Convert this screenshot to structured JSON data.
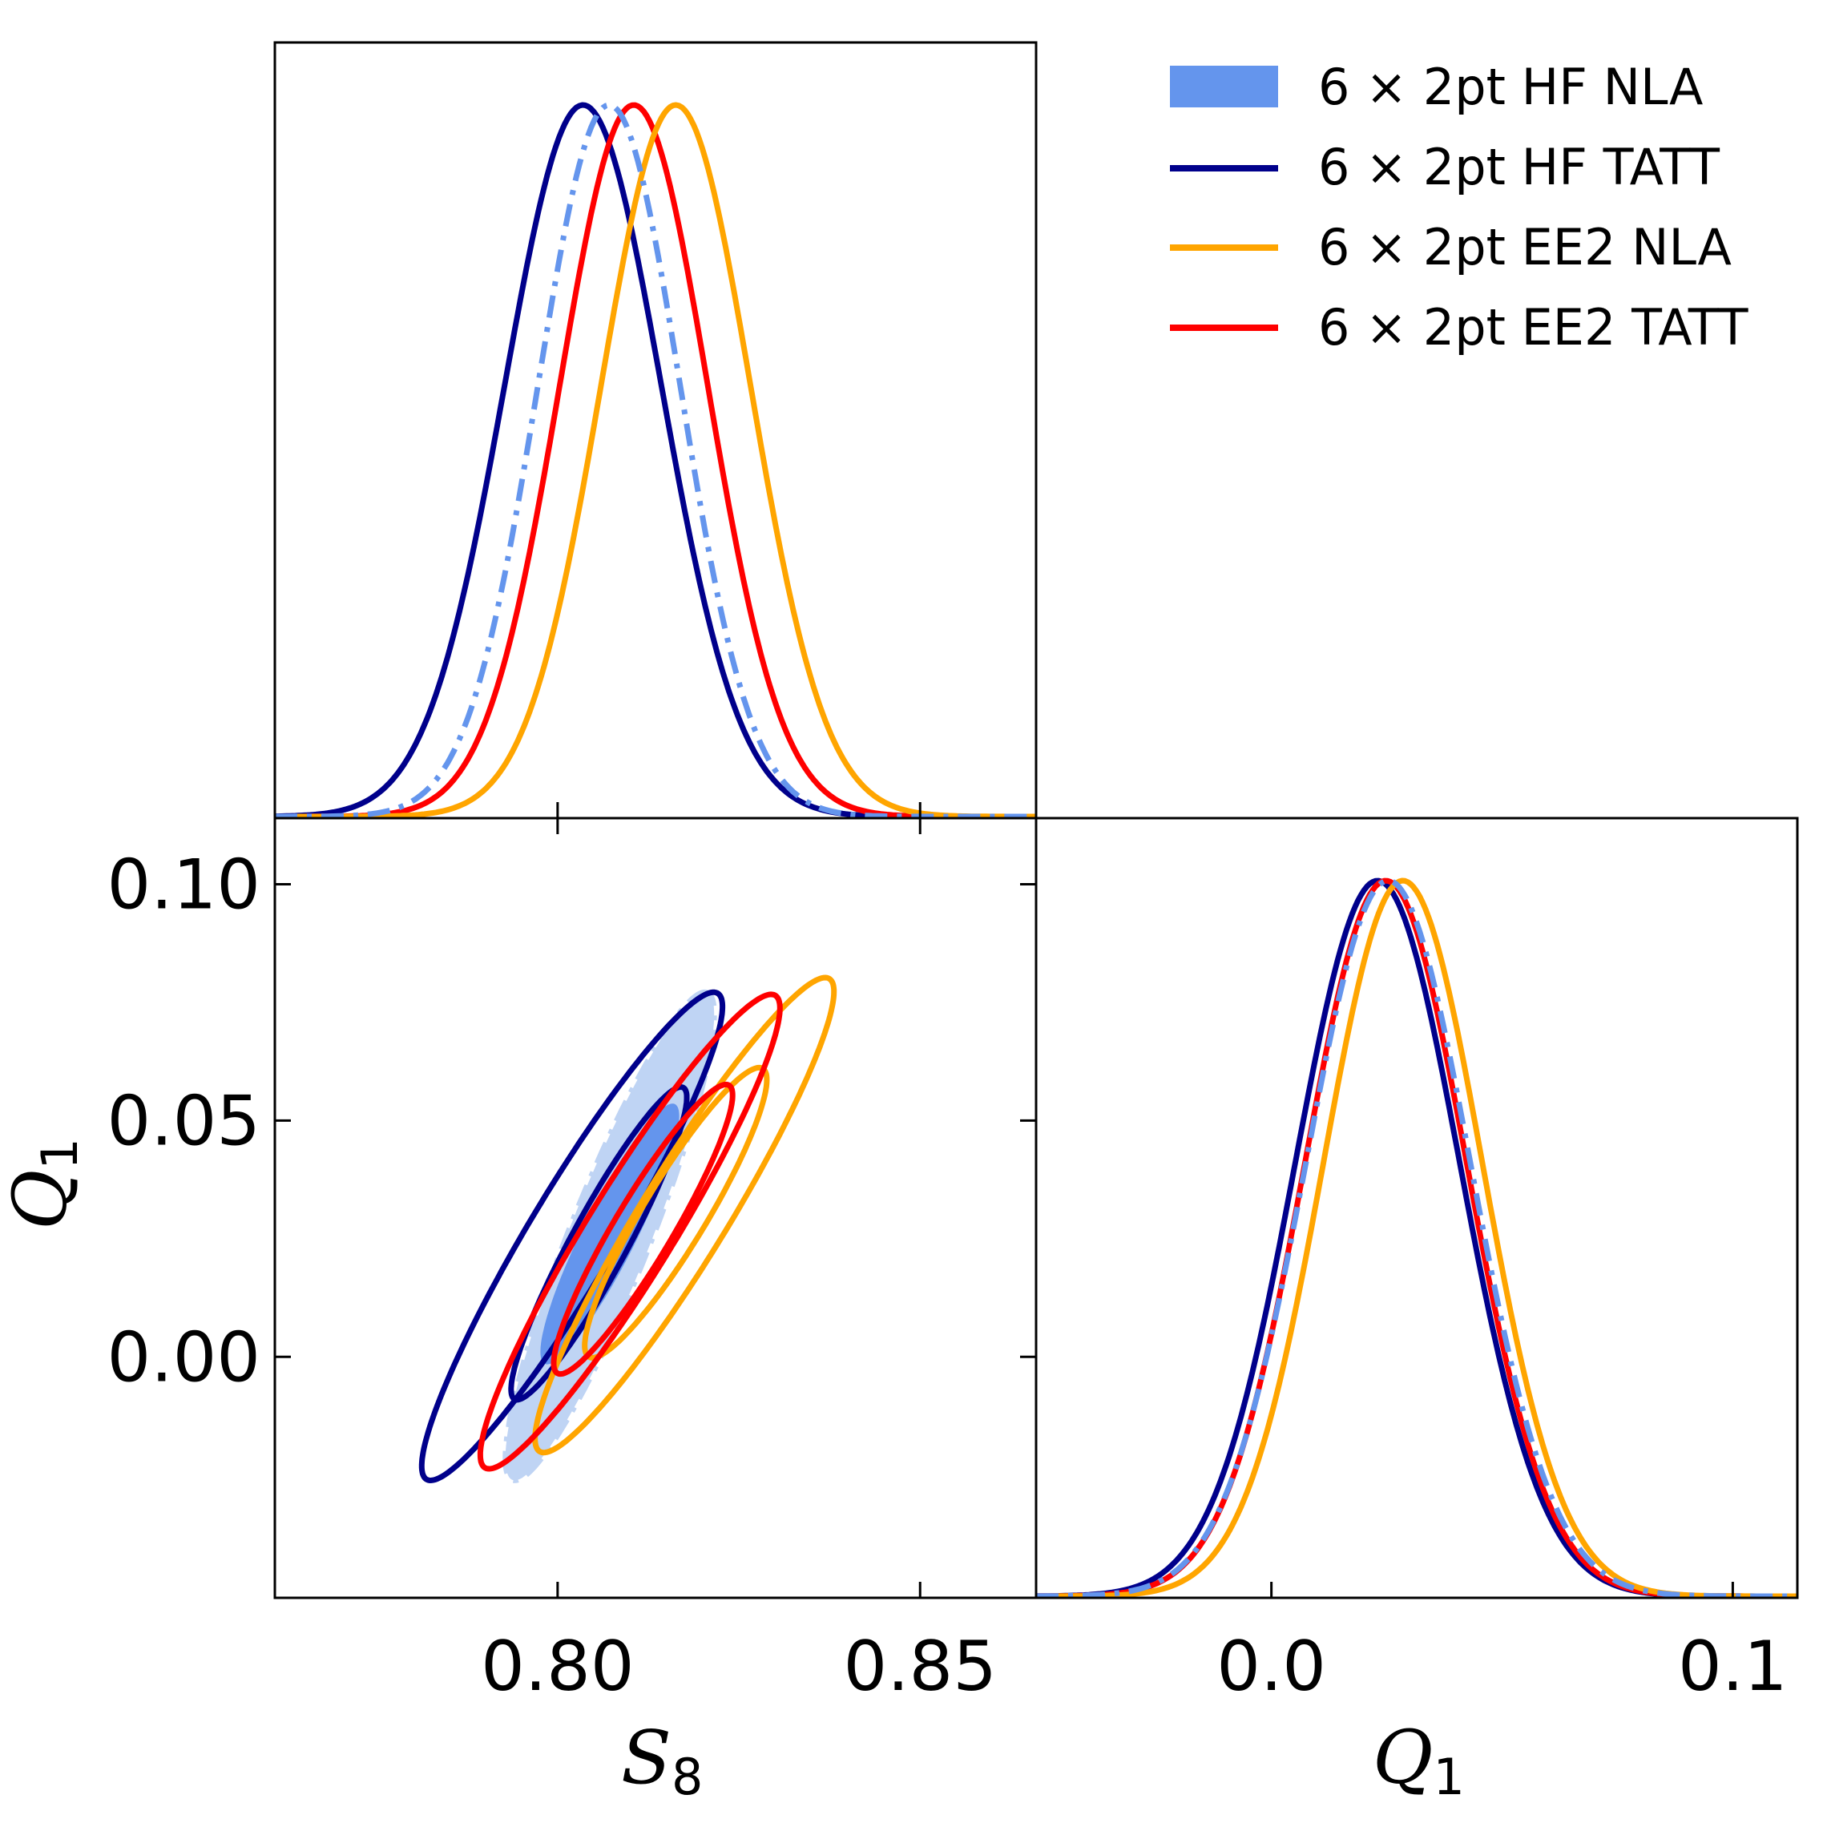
{
  "chart_data": {
    "type": "triangle",
    "colors": {
      "hf_nla": "#6495ED",
      "hf_nla_light": "#BFD4F4",
      "hf_tatt": "#00008B",
      "ee2_nla": "#FFA500",
      "ee2_tatt": "#FF0000"
    },
    "legend": [
      "6 × 2pt HF NLA",
      "6 × 2pt HF TATT",
      "6 × 2pt EE2 NLA",
      "6 × 2pt EE2 TATT"
    ],
    "legend_placement": "top-right",
    "parameters": {
      "S8": {
        "label": "S",
        "label_sub": "8",
        "range": [
          0.761,
          0.866
        ],
        "ticks": [
          0.8,
          0.85
        ],
        "tick_labels": [
          "0.80",
          "0.85"
        ]
      },
      "Q1": {
        "label": "Q",
        "label_sub": "1",
        "range": [
          -0.051,
          0.114
        ],
        "ticks_x": [
          0.0,
          0.1
        ],
        "tick_labels_x": [
          "0.0",
          "0.1"
        ],
        "ticks_y": [
          0.0,
          0.05,
          0.1
        ],
        "tick_labels_y": [
          "0.00",
          "0.05",
          "0.10"
        ]
      }
    },
    "series": [
      {
        "name": "6 × 2pt HF NLA",
        "style": "filled+dashdot",
        "S8": {
          "mean": 0.8071,
          "sigma": 0.0098
        },
        "Q1": {
          "mean": 0.0253,
          "sigma": 0.0178
        },
        "contour_68": {
          "center": [
            0.8072,
            0.026
          ],
          "ux": 0.00895,
          "uy": 0.0275,
          "vx": -0.0034,
          "vy": 0.0022
        },
        "contour_95": {
          "center": [
            0.8072,
            0.0255
          ],
          "ux": 0.0135,
          "uy": 0.0515,
          "vx": -0.005,
          "vy": 0.0038
        }
      },
      {
        "name": "6 × 2pt HF TATT",
        "style": "solid",
        "S8": {
          "mean": 0.8035,
          "sigma": 0.0108
        },
        "Q1": {
          "mean": 0.023,
          "sigma": 0.0178
        },
        "contour_68": {
          "center": [
            0.8057,
            0.024
          ],
          "ux": 0.0116,
          "uy": 0.033,
          "vx": -0.0035,
          "vy": 0.0025
        },
        "contour_95": {
          "center": [
            0.802,
            0.0255
          ],
          "ux": 0.02,
          "uy": 0.0515,
          "vx": -0.0055,
          "vy": 0.004
        }
      },
      {
        "name": "6 × 2pt EE2 NLA",
        "style": "solid",
        "S8": {
          "mean": 0.8163,
          "sigma": 0.0103
        },
        "Q1": {
          "mean": 0.0285,
          "sigma": 0.0172
        },
        "contour_68": {
          "center": [
            0.8163,
            0.0305
          ],
          "ux": 0.012,
          "uy": 0.0305,
          "vx": -0.0037,
          "vy": 0.0035
        },
        "contour_95": {
          "center": [
            0.8175,
            0.03
          ],
          "ux": 0.02,
          "uy": 0.05,
          "vx": -0.005,
          "vy": 0.005
        }
      },
      {
        "name": "6 × 2pt EE2 TATT",
        "style": "solid",
        "S8": {
          "mean": 0.8105,
          "sigma": 0.0102
        },
        "Q1": {
          "mean": 0.0248,
          "sigma": 0.0175
        },
        "contour_68": {
          "center": [
            0.8118,
            0.027
          ],
          "ux": 0.0118,
          "uy": 0.0305,
          "vx": -0.0036,
          "vy": 0.0028
        },
        "contour_95": {
          "center": [
            0.81,
            0.0265
          ],
          "ux": 0.02,
          "uy": 0.05,
          "vx": -0.0052,
          "vy": 0.0045
        }
      }
    ]
  }
}
